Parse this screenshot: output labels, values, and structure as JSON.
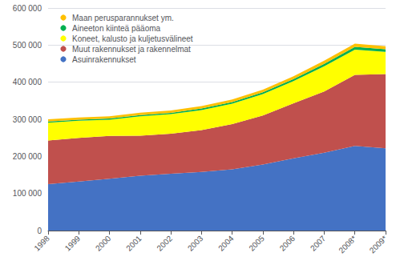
{
  "chart_data": {
    "type": "area",
    "stacked": true,
    "grid": true,
    "legend": "upper left",
    "categories": [
      "1998",
      "1999",
      "2000",
      "2001",
      "2002",
      "2003",
      "2004",
      "2005",
      "2006",
      "2007",
      "2008*",
      "2009*"
    ],
    "series": [
      {
        "name": "Asuinrakennukset",
        "color": "#4472C4",
        "values": [
          125000,
          132000,
          140000,
          148000,
          153000,
          158000,
          165000,
          178000,
          195000,
          210000,
          228000,
          222000
        ]
      },
      {
        "name": "Muut rakennukset ja rakennelmat",
        "color": "#C0504D",
        "values": [
          118000,
          118000,
          115000,
          108000,
          108000,
          113000,
          122000,
          132000,
          148000,
          165000,
          192000,
          200000
        ]
      },
      {
        "name": "Koneet, kalusto ja kuljetusvälineet",
        "color": "#FFFF00",
        "values": [
          48000,
          46000,
          44000,
          52000,
          53000,
          54000,
          55000,
          58000,
          60000,
          68000,
          68000,
          60000
        ]
      },
      {
        "name": "Aineeton kiinteä pääoma",
        "color": "#00B050",
        "values": [
          3000,
          3000,
          3000,
          3500,
          3500,
          4000,
          4500,
          5000,
          5500,
          6500,
          7500,
          7000
        ]
      },
      {
        "name": "Maan perusparannukset ym.",
        "color": "#FFC000",
        "values": [
          6000,
          6000,
          6000,
          6500,
          6500,
          6500,
          7000,
          7000,
          7500,
          8500,
          8500,
          8000
        ]
      }
    ],
    "ylim": [
      0,
      600000
    ],
    "yticks": [
      0,
      {
        "value": 100000,
        "label": "100 000"
      },
      {
        "value": 200000,
        "label": "200 000"
      },
      {
        "value": 300000,
        "label": "300 000"
      },
      {
        "value": 400000,
        "label": "400 000"
      },
      {
        "value": 500000,
        "label": "500 000"
      },
      {
        "value": 600000,
        "label": "600 000"
      }
    ]
  }
}
